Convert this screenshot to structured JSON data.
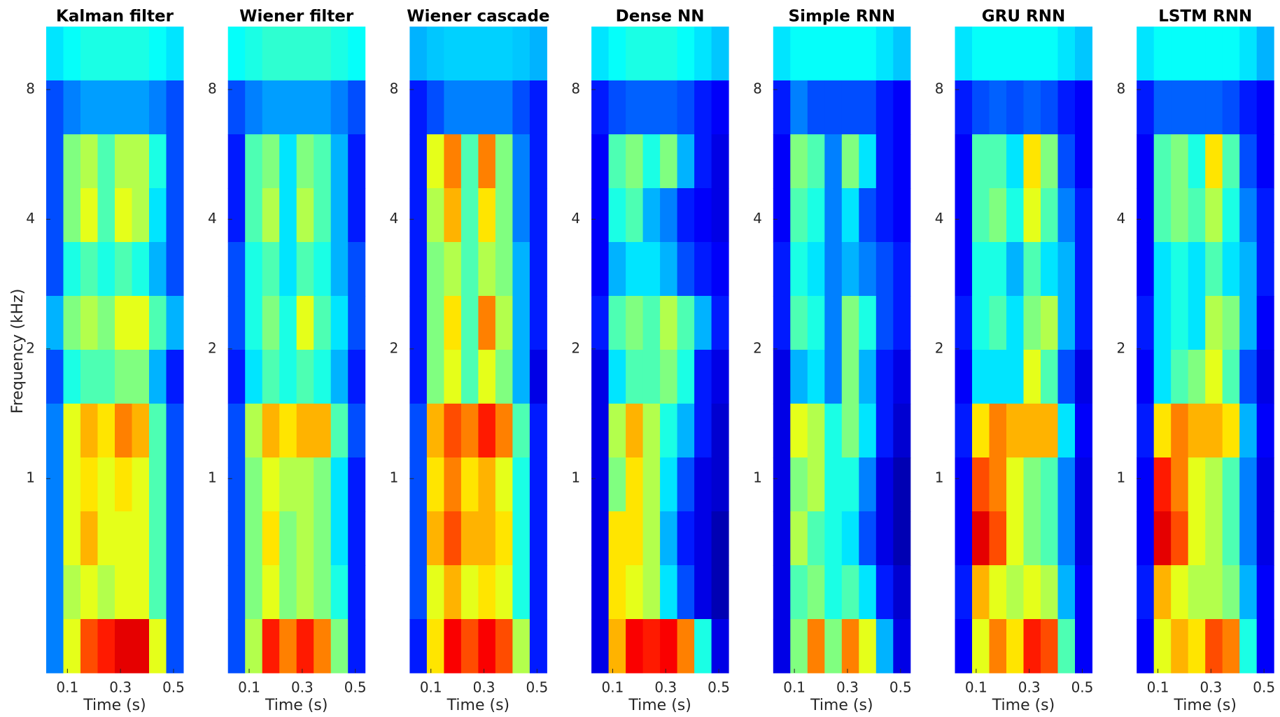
{
  "chart_data": [
    {
      "type": "heatmap",
      "title": "Kalman filter",
      "xlabel": "Time (s)",
      "ylabel": "Frequency (kHz)",
      "xlim": [
        0.02,
        0.537
      ],
      "ylim": [
        0.354,
        11.2
      ],
      "xticks": [
        0.1,
        0.3,
        0.5
      ],
      "yticks": [
        1,
        2,
        4,
        8
      ],
      "log_y": true,
      "colormap": "jet",
      "clim": [
        0,
        1
      ],
      "z": [
        [
          0.35,
          0.38,
          0.4,
          0.4,
          0.4,
          0.4,
          0.38,
          0.35
        ],
        [
          0.2,
          0.25,
          0.28,
          0.28,
          0.28,
          0.28,
          0.25,
          0.2
        ],
        [
          0.2,
          0.5,
          0.55,
          0.45,
          0.55,
          0.55,
          0.4,
          0.2
        ],
        [
          0.2,
          0.5,
          0.6,
          0.45,
          0.6,
          0.55,
          0.35,
          0.2
        ],
        [
          0.2,
          0.4,
          0.45,
          0.4,
          0.45,
          0.4,
          0.3,
          0.2
        ],
        [
          0.3,
          0.5,
          0.55,
          0.5,
          0.6,
          0.6,
          0.45,
          0.3
        ],
        [
          0.2,
          0.4,
          0.45,
          0.45,
          0.5,
          0.5,
          0.3,
          0.15
        ],
        [
          0.25,
          0.6,
          0.7,
          0.65,
          0.75,
          0.7,
          0.45,
          0.2
        ],
        [
          0.25,
          0.6,
          0.65,
          0.6,
          0.65,
          0.6,
          0.45,
          0.2
        ],
        [
          0.25,
          0.6,
          0.7,
          0.6,
          0.6,
          0.6,
          0.45,
          0.2
        ],
        [
          0.25,
          0.55,
          0.6,
          0.55,
          0.6,
          0.6,
          0.45,
          0.2
        ],
        [
          0.25,
          0.6,
          0.8,
          0.85,
          0.9,
          0.9,
          0.6,
          0.2
        ]
      ]
    },
    {
      "type": "heatmap",
      "title": "Wiener filter",
      "xlabel": "Time (s)",
      "xlim": [
        0.02,
        0.537
      ],
      "ylim": [
        0.354,
        11.2
      ],
      "xticks": [
        0.1,
        0.3,
        0.5
      ],
      "yticks": [
        1,
        2,
        4,
        8
      ],
      "log_y": true,
      "colormap": "jet",
      "clim": [
        0,
        1
      ],
      "z": [
        [
          0.38,
          0.4,
          0.42,
          0.42,
          0.42,
          0.42,
          0.4,
          0.38
        ],
        [
          0.2,
          0.25,
          0.28,
          0.28,
          0.28,
          0.28,
          0.25,
          0.2
        ],
        [
          0.15,
          0.45,
          0.5,
          0.35,
          0.5,
          0.45,
          0.3,
          0.15
        ],
        [
          0.15,
          0.45,
          0.55,
          0.35,
          0.55,
          0.45,
          0.3,
          0.15
        ],
        [
          0.2,
          0.4,
          0.45,
          0.35,
          0.45,
          0.4,
          0.3,
          0.2
        ],
        [
          0.2,
          0.4,
          0.5,
          0.4,
          0.6,
          0.45,
          0.35,
          0.2
        ],
        [
          0.15,
          0.35,
          0.45,
          0.4,
          0.45,
          0.4,
          0.3,
          0.15
        ],
        [
          0.2,
          0.55,
          0.7,
          0.65,
          0.7,
          0.7,
          0.45,
          0.2
        ],
        [
          0.2,
          0.5,
          0.6,
          0.55,
          0.55,
          0.5,
          0.35,
          0.15
        ],
        [
          0.2,
          0.5,
          0.65,
          0.5,
          0.55,
          0.5,
          0.35,
          0.15
        ],
        [
          0.2,
          0.5,
          0.6,
          0.5,
          0.55,
          0.5,
          0.4,
          0.15
        ],
        [
          0.2,
          0.55,
          0.85,
          0.75,
          0.85,
          0.75,
          0.5,
          0.15
        ]
      ]
    },
    {
      "type": "heatmap",
      "title": "Wiener cascade",
      "xlabel": "Time (s)",
      "xlim": [
        0.02,
        0.537
      ],
      "ylim": [
        0.354,
        11.2
      ],
      "xticks": [
        0.1,
        0.3,
        0.5
      ],
      "yticks": [
        1,
        2,
        4,
        8
      ],
      "log_y": true,
      "colormap": "jet",
      "clim": [
        0,
        1
      ],
      "z": [
        [
          0.3,
          0.32,
          0.33,
          0.33,
          0.33,
          0.33,
          0.32,
          0.3
        ],
        [
          0.15,
          0.2,
          0.25,
          0.25,
          0.25,
          0.25,
          0.2,
          0.15
        ],
        [
          0.15,
          0.6,
          0.75,
          0.45,
          0.75,
          0.5,
          0.25,
          0.15
        ],
        [
          0.15,
          0.55,
          0.7,
          0.45,
          0.65,
          0.5,
          0.25,
          0.15
        ],
        [
          0.15,
          0.5,
          0.55,
          0.45,
          0.55,
          0.5,
          0.3,
          0.15
        ],
        [
          0.15,
          0.5,
          0.65,
          0.45,
          0.75,
          0.55,
          0.3,
          0.15
        ],
        [
          0.15,
          0.5,
          0.6,
          0.45,
          0.6,
          0.5,
          0.3,
          0.1
        ],
        [
          0.2,
          0.7,
          0.8,
          0.75,
          0.85,
          0.75,
          0.45,
          0.15
        ],
        [
          0.2,
          0.65,
          0.75,
          0.65,
          0.7,
          0.6,
          0.4,
          0.15
        ],
        [
          0.2,
          0.7,
          0.8,
          0.7,
          0.7,
          0.65,
          0.4,
          0.15
        ],
        [
          0.2,
          0.6,
          0.7,
          0.6,
          0.65,
          0.6,
          0.4,
          0.15
        ],
        [
          0.15,
          0.65,
          0.88,
          0.8,
          0.88,
          0.8,
          0.55,
          0.15
        ]
      ]
    },
    {
      "type": "heatmap",
      "title": "Dense NN",
      "xlabel": "Time (s)",
      "xlim": [
        0.02,
        0.537
      ],
      "ylim": [
        0.354,
        11.2
      ],
      "xticks": [
        0.1,
        0.3,
        0.5
      ],
      "yticks": [
        1,
        2,
        4,
        8
      ],
      "log_y": true,
      "colormap": "jet",
      "clim": [
        0,
        1
      ],
      "z": [
        [
          0.35,
          0.38,
          0.4,
          0.4,
          0.4,
          0.38,
          0.35,
          0.32
        ],
        [
          0.15,
          0.2,
          0.22,
          0.22,
          0.22,
          0.2,
          0.15,
          0.12
        ],
        [
          0.12,
          0.45,
          0.5,
          0.4,
          0.5,
          0.3,
          0.15,
          0.1
        ],
        [
          0.12,
          0.4,
          0.45,
          0.3,
          0.25,
          0.15,
          0.12,
          0.1
        ],
        [
          0.12,
          0.3,
          0.35,
          0.35,
          0.3,
          0.2,
          0.15,
          0.12
        ],
        [
          0.15,
          0.45,
          0.5,
          0.45,
          0.55,
          0.45,
          0.3,
          0.15
        ],
        [
          0.1,
          0.35,
          0.45,
          0.45,
          0.5,
          0.4,
          0.15,
          0.1
        ],
        [
          0.1,
          0.55,
          0.7,
          0.55,
          0.4,
          0.3,
          0.15,
          0.08
        ],
        [
          0.1,
          0.5,
          0.65,
          0.55,
          0.35,
          0.2,
          0.1,
          0.08
        ],
        [
          0.1,
          0.65,
          0.65,
          0.55,
          0.3,
          0.15,
          0.1,
          0.05
        ],
        [
          0.1,
          0.65,
          0.6,
          0.55,
          0.35,
          0.2,
          0.1,
          0.05
        ],
        [
          0.1,
          0.7,
          0.88,
          0.85,
          0.88,
          0.75,
          0.4,
          0.1
        ]
      ]
    },
    {
      "type": "heatmap",
      "title": "Simple RNN",
      "xlabel": "Time (s)",
      "xlim": [
        0.02,
        0.537
      ],
      "ylim": [
        0.354,
        11.2
      ],
      "xticks": [
        0.1,
        0.3,
        0.5
      ],
      "yticks": [
        1,
        2,
        4,
        8
      ],
      "log_y": true,
      "colormap": "jet",
      "clim": [
        0,
        1
      ],
      "z": [
        [
          0.35,
          0.38,
          0.38,
          0.38,
          0.38,
          0.38,
          0.35,
          0.32
        ],
        [
          0.15,
          0.25,
          0.2,
          0.2,
          0.2,
          0.2,
          0.15,
          0.12
        ],
        [
          0.12,
          0.5,
          0.45,
          0.25,
          0.5,
          0.35,
          0.15,
          0.12
        ],
        [
          0.12,
          0.45,
          0.4,
          0.25,
          0.35,
          0.2,
          0.15,
          0.12
        ],
        [
          0.15,
          0.4,
          0.35,
          0.25,
          0.3,
          0.25,
          0.2,
          0.15
        ],
        [
          0.15,
          0.45,
          0.4,
          0.25,
          0.5,
          0.4,
          0.2,
          0.15
        ],
        [
          0.1,
          0.3,
          0.35,
          0.25,
          0.5,
          0.3,
          0.15,
          0.1
        ],
        [
          0.1,
          0.6,
          0.55,
          0.4,
          0.5,
          0.35,
          0.15,
          0.08
        ],
        [
          0.1,
          0.5,
          0.55,
          0.4,
          0.4,
          0.25,
          0.1,
          0.05
        ],
        [
          0.1,
          0.55,
          0.45,
          0.4,
          0.35,
          0.2,
          0.1,
          0.05
        ],
        [
          0.1,
          0.45,
          0.5,
          0.4,
          0.45,
          0.35,
          0.15,
          0.08
        ],
        [
          0.1,
          0.5,
          0.75,
          0.5,
          0.75,
          0.6,
          0.3,
          0.1
        ]
      ]
    },
    {
      "type": "heatmap",
      "title": "GRU RNN",
      "xlabel": "Time (s)",
      "xlim": [
        0.02,
        0.537
      ],
      "ylim": [
        0.354,
        11.2
      ],
      "xticks": [
        0.1,
        0.3,
        0.5
      ],
      "yticks": [
        1,
        2,
        4,
        8
      ],
      "log_y": true,
      "colormap": "jet",
      "clim": [
        0,
        1
      ],
      "z": [
        [
          0.35,
          0.38,
          0.38,
          0.38,
          0.38,
          0.38,
          0.35,
          0.32
        ],
        [
          0.15,
          0.2,
          0.22,
          0.2,
          0.22,
          0.2,
          0.15,
          0.12
        ],
        [
          0.12,
          0.45,
          0.45,
          0.35,
          0.65,
          0.5,
          0.2,
          0.12
        ],
        [
          0.12,
          0.45,
          0.5,
          0.4,
          0.6,
          0.45,
          0.25,
          0.15
        ],
        [
          0.12,
          0.4,
          0.4,
          0.3,
          0.45,
          0.35,
          0.3,
          0.15
        ],
        [
          0.15,
          0.4,
          0.45,
          0.35,
          0.5,
          0.55,
          0.3,
          0.15
        ],
        [
          0.12,
          0.35,
          0.35,
          0.35,
          0.6,
          0.45,
          0.2,
          0.1
        ],
        [
          0.15,
          0.65,
          0.75,
          0.7,
          0.7,
          0.7,
          0.35,
          0.12
        ],
        [
          0.12,
          0.8,
          0.75,
          0.6,
          0.5,
          0.45,
          0.25,
          0.1
        ],
        [
          0.12,
          0.9,
          0.8,
          0.6,
          0.5,
          0.45,
          0.25,
          0.1
        ],
        [
          0.15,
          0.7,
          0.6,
          0.55,
          0.6,
          0.55,
          0.3,
          0.12
        ],
        [
          0.12,
          0.6,
          0.75,
          0.65,
          0.85,
          0.8,
          0.45,
          0.12
        ]
      ]
    },
    {
      "type": "heatmap",
      "title": "LSTM RNN",
      "xlabel": "Time (s)",
      "xlim": [
        0.02,
        0.537
      ],
      "ylim": [
        0.354,
        11.2
      ],
      "xticks": [
        0.1,
        0.3,
        0.5
      ],
      "yticks": [
        1,
        2,
        4,
        8
      ],
      "log_y": true,
      "colormap": "jet",
      "clim": [
        0,
        1
      ],
      "z": [
        [
          0.35,
          0.38,
          0.38,
          0.38,
          0.38,
          0.38,
          0.35,
          0.3
        ],
        [
          0.15,
          0.22,
          0.22,
          0.22,
          0.22,
          0.2,
          0.15,
          0.12
        ],
        [
          0.12,
          0.45,
          0.5,
          0.4,
          0.65,
          0.45,
          0.2,
          0.12
        ],
        [
          0.12,
          0.45,
          0.5,
          0.45,
          0.55,
          0.4,
          0.25,
          0.15
        ],
        [
          0.12,
          0.35,
          0.4,
          0.35,
          0.45,
          0.35,
          0.3,
          0.15
        ],
        [
          0.15,
          0.35,
          0.4,
          0.35,
          0.55,
          0.5,
          0.3,
          0.12
        ],
        [
          0.12,
          0.35,
          0.45,
          0.5,
          0.6,
          0.45,
          0.2,
          0.1
        ],
        [
          0.15,
          0.65,
          0.75,
          0.7,
          0.7,
          0.65,
          0.3,
          0.12
        ],
        [
          0.12,
          0.85,
          0.75,
          0.6,
          0.55,
          0.45,
          0.25,
          0.1
        ],
        [
          0.12,
          0.9,
          0.8,
          0.6,
          0.55,
          0.45,
          0.25,
          0.1
        ],
        [
          0.15,
          0.7,
          0.6,
          0.55,
          0.55,
          0.5,
          0.3,
          0.12
        ],
        [
          0.12,
          0.6,
          0.7,
          0.65,
          0.8,
          0.75,
          0.4,
          0.12
        ]
      ]
    }
  ]
}
